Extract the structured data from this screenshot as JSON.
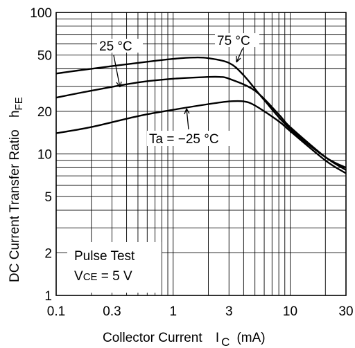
{
  "chart_data": {
    "type": "line",
    "title": "",
    "xlabel": "Collector Current",
    "xlabel_symbol": "I",
    "xlabel_sub": "C",
    "xlabel_unit": "(mA)",
    "ylabel": "DC Current Transfer Ratio",
    "ylabel_symbol": "h",
    "ylabel_sub": "FE",
    "x_scale": "log",
    "y_scale": "log",
    "xlim": [
      0.1,
      30
    ],
    "ylim": [
      1,
      100
    ],
    "grid": true,
    "x_ticks": [
      {
        "v": 0.1,
        "label": "0.1"
      },
      {
        "v": 0.3,
        "label": "0.3"
      },
      {
        "v": 1,
        "label": "1"
      },
      {
        "v": 3,
        "label": "3"
      },
      {
        "v": 10,
        "label": "10"
      },
      {
        "v": 30,
        "label": "30"
      }
    ],
    "y_ticks": [
      {
        "v": 1,
        "label": "1"
      },
      {
        "v": 2,
        "label": "2"
      },
      {
        "v": 5,
        "label": "5"
      },
      {
        "v": 10,
        "label": "10"
      },
      {
        "v": 20,
        "label": "20"
      },
      {
        "v": 50,
        "label": "50"
      },
      {
        "v": 100,
        "label": "100"
      }
    ],
    "series": [
      {
        "name": "75 °C",
        "x": [
          0.1,
          0.2,
          0.5,
          1,
          1.5,
          2,
          3,
          4,
          6,
          10,
          20,
          30
        ],
        "y": [
          37,
          40,
          44,
          47,
          48,
          47.5,
          44,
          36,
          24,
          15,
          9.5,
          8
        ]
      },
      {
        "name": "25 °C",
        "x": [
          0.1,
          0.2,
          0.5,
          1,
          2,
          2.5,
          3,
          5,
          8,
          10,
          20,
          30
        ],
        "y": [
          25,
          28,
          32,
          34,
          35,
          35,
          34,
          28,
          19,
          15.5,
          9.5,
          7.7
        ]
      },
      {
        "name": "Ta = −25 °C",
        "x": [
          0.1,
          0.2,
          0.5,
          1,
          2,
          3,
          4,
          5,
          8,
          10,
          20,
          30
        ],
        "y": [
          14,
          15.5,
          18.5,
          20.5,
          22.5,
          23.5,
          23.5,
          22,
          17,
          14.5,
          9,
          7.3
        ]
      }
    ],
    "annotations": {
      "label_75": "75 °C",
      "label_25": "25 °C",
      "label_m25": "Ta = −25 °C",
      "pulse_test": "Pulse Test",
      "vce_symbol": "V",
      "vce_sub": "CE",
      "vce_value": " = 5 V"
    }
  }
}
